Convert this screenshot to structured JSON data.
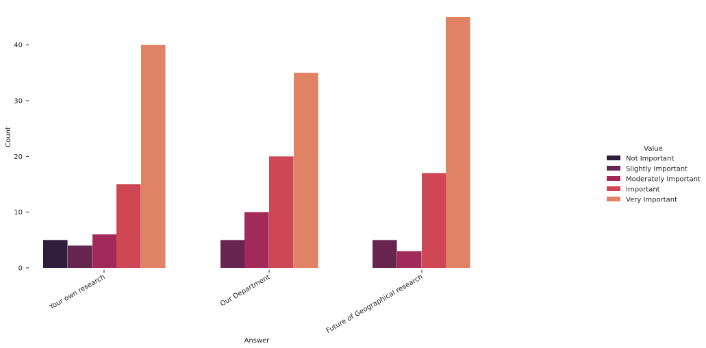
{
  "chart_data": {
    "type": "bar",
    "categories": [
      "Your own research",
      "Our Department",
      "Future of Geographical research"
    ],
    "series": [
      {
        "name": "Not Important",
        "values": [
          5,
          null,
          null
        ],
        "color": "#2f1d3b"
      },
      {
        "name": "Slightly Important",
        "values": [
          4,
          5,
          5
        ],
        "color": "#67264f"
      },
      {
        "name": "Moderately Important",
        "values": [
          6,
          10,
          3
        ],
        "color": "#a22a5a"
      },
      {
        "name": "Important",
        "values": [
          15,
          20,
          17
        ],
        "color": "#cf4754"
      },
      {
        "name": "Very Important",
        "values": [
          40,
          35,
          45
        ],
        "color": "#e08264"
      }
    ],
    "xlabel": "Answer",
    "ylabel": "Count",
    "ylim": [
      0,
      45
    ],
    "yticks": [
      0,
      10,
      20,
      30,
      40
    ],
    "legend_title": "Value",
    "legend_position": "right",
    "grid": false,
    "tick_label_rotation": 30
  }
}
